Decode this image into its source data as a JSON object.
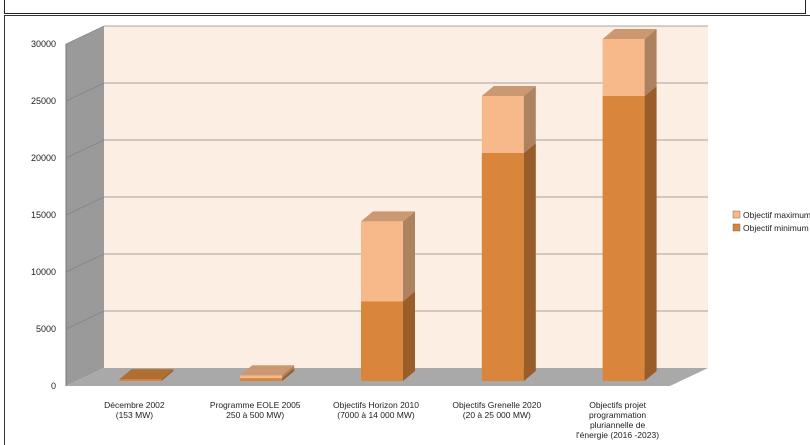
{
  "chart_data": {
    "type": "bar",
    "stacked": true,
    "three_d": true,
    "title": "",
    "xlabel": "",
    "ylabel": "",
    "ylim": [
      0,
      30000
    ],
    "yticks": [
      0,
      5000,
      10000,
      15000,
      20000,
      25000,
      30000
    ],
    "grid": true,
    "legend_position": "right",
    "categories": [
      [
        "Décembre 2002",
        "(153 MW)"
      ],
      [
        "Programme EOLE 2005",
        "250 à 500 MW)"
      ],
      [
        "Objectifs Horizon 2010",
        "(7000 à 14 000 MW)"
      ],
      [
        "Objectifs Grenelle 2020",
        "(20 à 25 000 MW)"
      ],
      [
        "Objectifs projet",
        "programmation",
        "pluriannelle de",
        "l'énergie (2016 -2023)"
      ]
    ],
    "series": [
      {
        "name": "Objectif minimum",
        "color": "#d9853b",
        "values": [
          153,
          250,
          7000,
          20000,
          25000
        ]
      },
      {
        "name": "Objectif maximum",
        "color": "#f7b98a",
        "values": [
          0,
          250,
          7000,
          5000,
          5000
        ]
      }
    ],
    "legend": [
      {
        "label": "Objectif maximum",
        "color": "#f7b98a"
      },
      {
        "label": "Objectif minimum",
        "color": "#d9853b"
      }
    ]
  }
}
